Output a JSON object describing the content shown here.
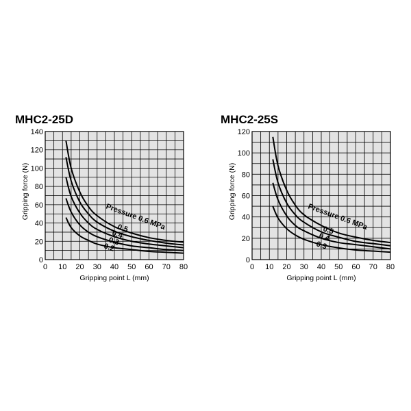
{
  "chart_data": [
    {
      "type": "line",
      "title": "MHC2-25D",
      "xlabel": "Gripping point L (mm)",
      "ylabel": "Gripping force (N)",
      "xlim": [
        0,
        80
      ],
      "ylim": [
        0,
        140
      ],
      "xticks": [
        0,
        10,
        20,
        30,
        40,
        50,
        60,
        70,
        80
      ],
      "yticks": [
        0,
        20,
        40,
        60,
        80,
        100,
        120,
        140
      ],
      "grid": true,
      "annotation": "Pressure 0.6 MPa",
      "series": [
        {
          "name": "0.6",
          "label": "",
          "x": [
            12,
            15,
            20,
            25,
            30,
            40,
            50,
            60,
            70,
            80
          ],
          "y": [
            130,
            100,
            74,
            58,
            48,
            36,
            29,
            24,
            21,
            19
          ]
        },
        {
          "name": "0.5",
          "label": "0.5",
          "x": [
            12,
            15,
            20,
            25,
            30,
            40,
            50,
            60,
            70,
            80
          ],
          "y": [
            112,
            86,
            63,
            50,
            41,
            31,
            25,
            21,
            18,
            16
          ]
        },
        {
          "name": "0.4",
          "label": "0.4",
          "x": [
            12,
            15,
            20,
            25,
            30,
            40,
            50,
            60,
            70,
            80
          ],
          "y": [
            90,
            69,
            51,
            40,
            33,
            25,
            20,
            17,
            15,
            13
          ]
        },
        {
          "name": "0.3",
          "label": "0.3",
          "x": [
            12,
            15,
            20,
            25,
            30,
            40,
            50,
            60,
            70,
            80
          ],
          "y": [
            67,
            52,
            38,
            30,
            25,
            19,
            15,
            13,
            11,
            10
          ]
        },
        {
          "name": "0.2",
          "label": "0.2",
          "x": [
            12,
            15,
            20,
            25,
            30,
            40,
            50,
            60,
            70,
            80
          ],
          "y": [
            46,
            35,
            26,
            21,
            17,
            13,
            11,
            9,
            8,
            7
          ]
        }
      ]
    },
    {
      "type": "line",
      "title": "MHC2-25S",
      "xlabel": "Gripping point L (mm)",
      "ylabel": "Gripping force (N)",
      "xlim": [
        0,
        80
      ],
      "ylim": [
        0,
        120
      ],
      "xticks": [
        0,
        10,
        20,
        30,
        40,
        50,
        60,
        70,
        80
      ],
      "yticks": [
        0,
        20,
        40,
        60,
        80,
        100,
        120
      ],
      "grid": true,
      "annotation": "Pressure 0.6 MPa",
      "series": [
        {
          "name": "0.6",
          "label": "",
          "x": [
            12,
            15,
            20,
            25,
            30,
            40,
            50,
            60,
            70,
            80
          ],
          "y": [
            115,
            88,
            65,
            51,
            42,
            32,
            25,
            21,
            18,
            16
          ]
        },
        {
          "name": "0.5",
          "label": "0.5",
          "x": [
            12,
            15,
            20,
            25,
            30,
            40,
            50,
            60,
            70,
            80
          ],
          "y": [
            94,
            72,
            53,
            42,
            35,
            26,
            21,
            17,
            15,
            13
          ]
        },
        {
          "name": "0.4",
          "label": "0.4",
          "x": [
            12,
            15,
            20,
            25,
            30,
            40,
            50,
            60,
            70,
            80
          ],
          "y": [
            72,
            56,
            41,
            32,
            27,
            20,
            16,
            14,
            12,
            10
          ]
        },
        {
          "name": "0.3",
          "label": "0.3",
          "x": [
            12,
            15,
            20,
            25,
            30,
            40,
            50,
            60,
            70,
            80
          ],
          "y": [
            50,
            39,
            29,
            23,
            19,
            14,
            11,
            9,
            8,
            7
          ]
        }
      ]
    }
  ]
}
